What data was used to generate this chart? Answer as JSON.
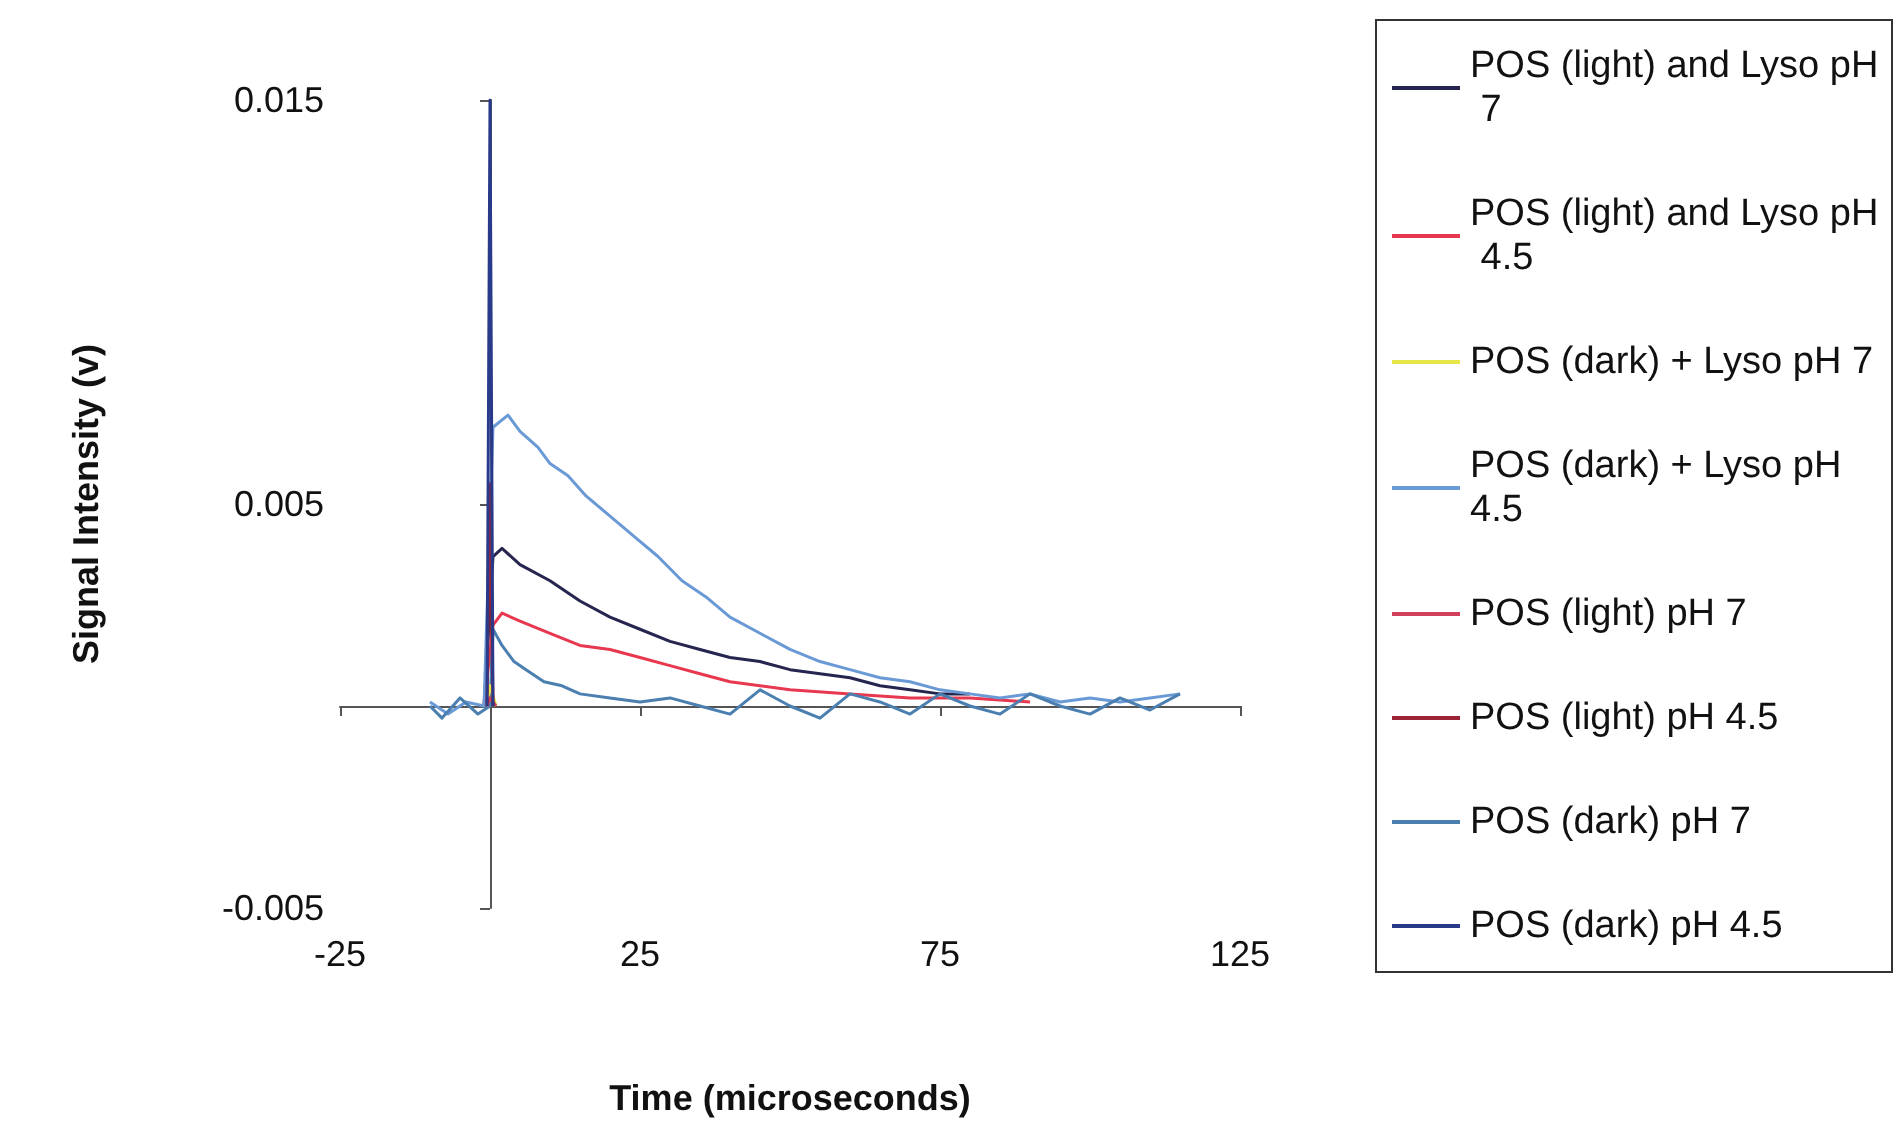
{
  "chart_data": {
    "type": "line",
    "xlabel": "Time (microseconds)",
    "ylabel": "Signal Intensity (v)",
    "xlim": [
      -25,
      125
    ],
    "xticks": [
      -25,
      25,
      75,
      125
    ],
    "ylim": [
      -0.005,
      0.015
    ],
    "yticks": [
      -0.005,
      0.005,
      0.015
    ],
    "grid": false,
    "legend": "right",
    "marker": "none",
    "line_style": "solid",
    "series": [
      {
        "name": "POS (light) and Lyso pH 7",
        "color": "#25254f",
        "x": [
          -1,
          0.5,
          2,
          5,
          10,
          15,
          20,
          25,
          30,
          35,
          40,
          45,
          50,
          55,
          60,
          65,
          70,
          75,
          80
        ],
        "values": [
          0,
          0.0037,
          0.0039,
          0.0035,
          0.0031,
          0.0026,
          0.0022,
          0.0019,
          0.0016,
          0.0014,
          0.0012,
          0.0011,
          0.0009,
          0.0008,
          0.0007,
          0.0005,
          0.0004,
          0.0003,
          0.0003
        ]
      },
      {
        "name": "POS (light) and Lyso pH 4.5",
        "color": "#e8384f",
        "x": [
          -1,
          0.5,
          2,
          5,
          10,
          15,
          20,
          25,
          30,
          35,
          40,
          45,
          50,
          60,
          70,
          80,
          90
        ],
        "values": [
          0,
          0.002,
          0.0023,
          0.0021,
          0.0018,
          0.0015,
          0.0014,
          0.0012,
          0.001,
          0.0008,
          0.0006,
          0.0005,
          0.0004,
          0.0003,
          0.0002,
          0.0002,
          0.0001
        ]
      },
      {
        "name": "POS (dark) + Lyso pH 7",
        "color": "#e6e64a",
        "x": [
          -0.5,
          0,
          1
        ],
        "values": [
          0,
          0.0005,
          0
        ]
      },
      {
        "name": "POS (dark) + Lyso pH 4.5",
        "color": "#6a9ad6",
        "x": [
          -10,
          -7,
          -4,
          -1,
          0.5,
          3,
          5,
          8,
          10,
          13,
          16,
          20,
          24,
          28,
          32,
          36,
          40,
          45,
          50,
          55,
          60,
          65,
          70,
          75,
          80,
          85,
          90,
          95,
          100,
          105,
          110,
          115
        ],
        "values": [
          0.0001,
          -0.0002,
          0.0001,
          0,
          0.0069,
          0.0072,
          0.0068,
          0.0064,
          0.006,
          0.0057,
          0.0052,
          0.0047,
          0.0042,
          0.0037,
          0.0031,
          0.0027,
          0.0022,
          0.0018,
          0.0014,
          0.0011,
          0.0009,
          0.0007,
          0.0006,
          0.0004,
          0.0003,
          0.0002,
          0.0003,
          0.0001,
          0.0002,
          0.0001,
          0.0002,
          0.0003
        ]
      },
      {
        "name": "POS (light) pH 7",
        "color": "#d0405a",
        "x": [
          -0.5,
          0,
          1
        ],
        "values": [
          0,
          0.0002,
          0
        ]
      },
      {
        "name": "POS (light) pH 4.5",
        "color": "#9b2335",
        "x": [
          -0.5,
          0,
          0.5
        ],
        "values": [
          0,
          0.0055,
          0
        ]
      },
      {
        "name": "POS (dark) pH 7",
        "color": "#4a7fb0",
        "x": [
          -10,
          -8,
          -5,
          -2,
          0,
          0.5,
          2,
          4,
          6,
          9,
          12,
          15,
          20,
          25,
          30,
          35,
          40,
          45,
          50,
          55,
          60,
          65,
          70,
          75,
          80,
          85,
          90,
          95,
          100,
          105,
          110,
          115
        ],
        "values": [
          0,
          -0.0003,
          0.0002,
          -0.0002,
          0,
          0.0019,
          0.0015,
          0.0011,
          0.0009,
          0.0006,
          0.0005,
          0.0003,
          0.0002,
          0.0001,
          0.0002,
          0,
          -0.0002,
          0.0004,
          0,
          -0.0003,
          0.0003,
          0.0001,
          -0.0002,
          0.0003,
          0,
          -0.0002,
          0.0003,
          0,
          -0.0002,
          0.0002,
          -0.0001,
          0.0003
        ]
      },
      {
        "name": "POS (dark) pH 4.5",
        "color": "#2a3a8a",
        "x": [
          -0.5,
          0,
          0.5
        ],
        "values": [
          0,
          0.015,
          0
        ]
      }
    ]
  }
}
